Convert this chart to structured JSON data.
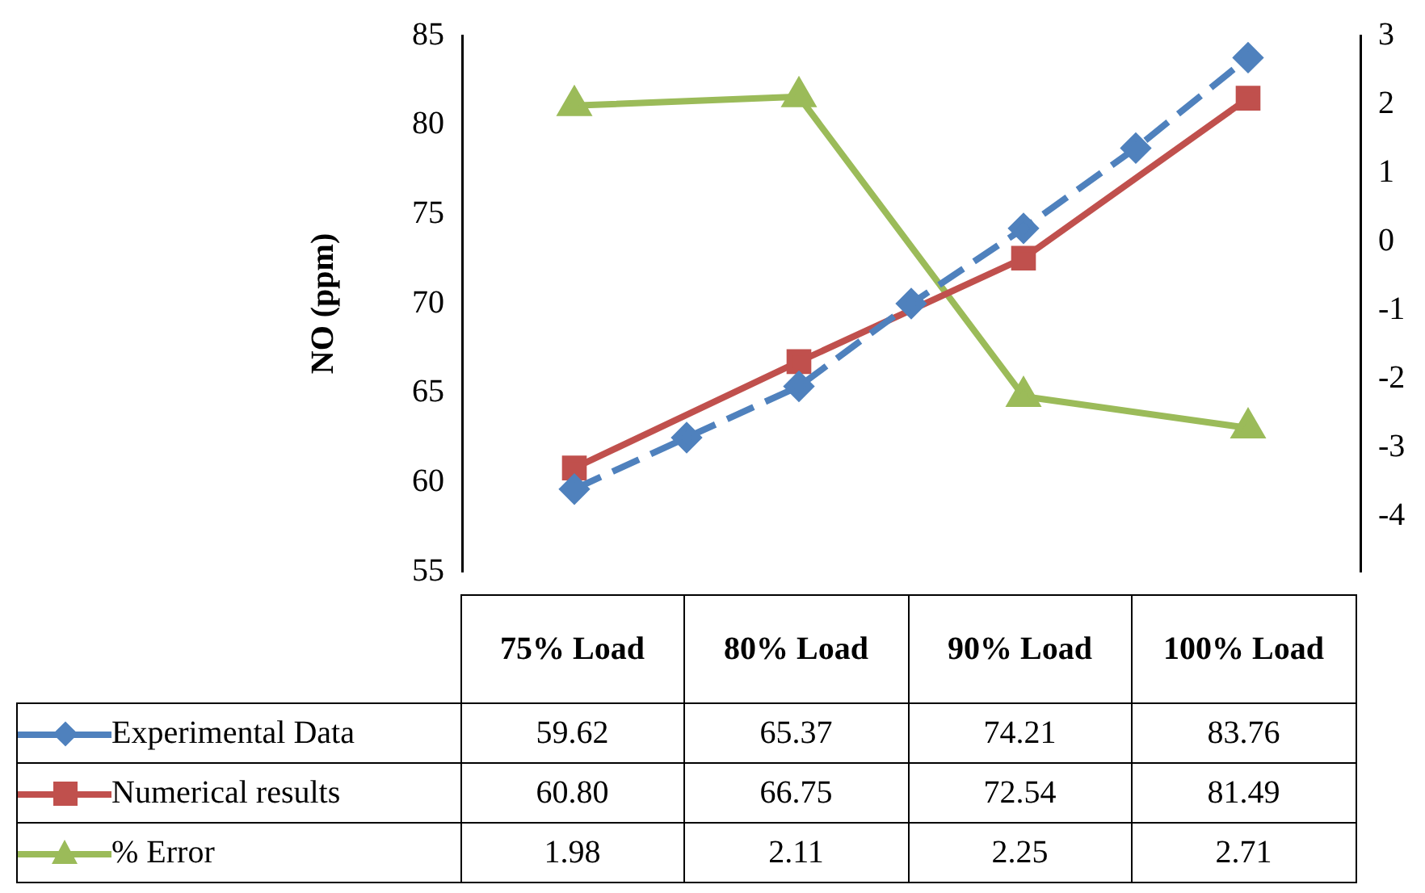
{
  "chart_data": {
    "type": "line",
    "ylabel": "NO (ppm)",
    "categories": [
      "75% Load",
      null,
      "80% Load",
      null,
      "90% Load",
      null,
      "100% Load"
    ],
    "ylim": [
      55,
      85
    ],
    "yticks": [
      55,
      60,
      65,
      70,
      75,
      80,
      85
    ],
    "y2lim": [
      -4.8,
      3
    ],
    "y2ticks": [
      -4,
      -3,
      -2,
      -1,
      0,
      1,
      2,
      3
    ],
    "legend": "bottom",
    "grid": false,
    "series": [
      {
        "name": "Experimental Data",
        "color": "#4f81bd",
        "marker": "diamond",
        "line_style": "dashed",
        "values": [
          59.62,
          62.5,
          65.37,
          70.0,
          74.21,
          78.7,
          83.76
        ],
        "value_labels": [
          "59.62",
          null,
          "65.37",
          null,
          "74.21",
          null,
          "83.76"
        ]
      },
      {
        "name": "Numerical results",
        "color": "#c0504d",
        "marker": "square",
        "line_style": "solid",
        "values": [
          60.8,
          null,
          66.75,
          null,
          72.54,
          null,
          81.49
        ],
        "value_labels": [
          "60.80",
          null,
          "66.75",
          null,
          "72.54",
          null,
          "81.49"
        ]
      },
      {
        "name": "% Error",
        "color": "#9bbb59",
        "marker": "triangle",
        "line_style": "solid",
        "axis": "y2",
        "values": [
          1.98,
          null,
          2.11,
          null,
          -2.25,
          null,
          -2.71
        ]
      }
    ],
    "annotations": [
      "1.98",
      "2.11",
      "2.25",
      "2.71"
    ]
  }
}
